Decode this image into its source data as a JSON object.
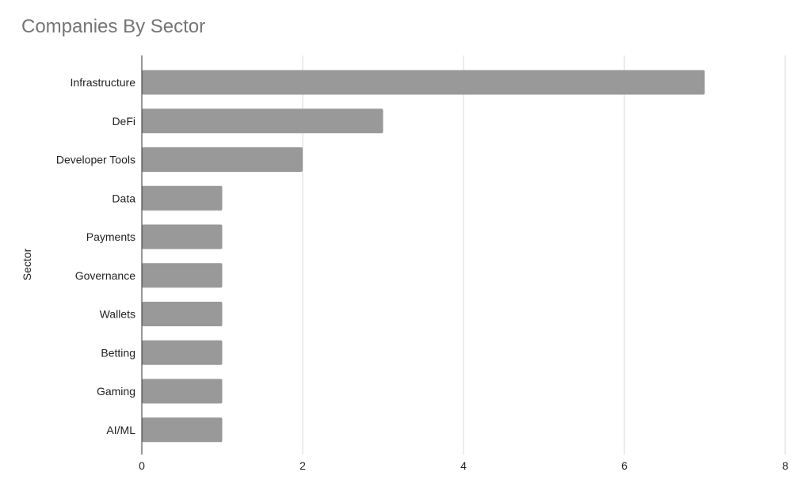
{
  "chart_data": {
    "type": "bar",
    "orientation": "horizontal",
    "title": "Companies By Sector",
    "xlabel": "",
    "ylabel": "Sector",
    "categories": [
      "Infrastructure",
      "DeFi",
      "Developer Tools",
      "Data",
      "Payments",
      "Governance",
      "Wallets",
      "Betting",
      "Gaming",
      "AI/ML"
    ],
    "values": [
      7,
      3,
      2,
      1,
      1,
      1,
      1,
      1,
      1,
      1
    ],
    "xlim": [
      0,
      8
    ],
    "xticks": [
      "0",
      "2",
      "4",
      "6",
      "8"
    ],
    "grid": true,
    "legend": "none",
    "bar_color": "#999999"
  }
}
